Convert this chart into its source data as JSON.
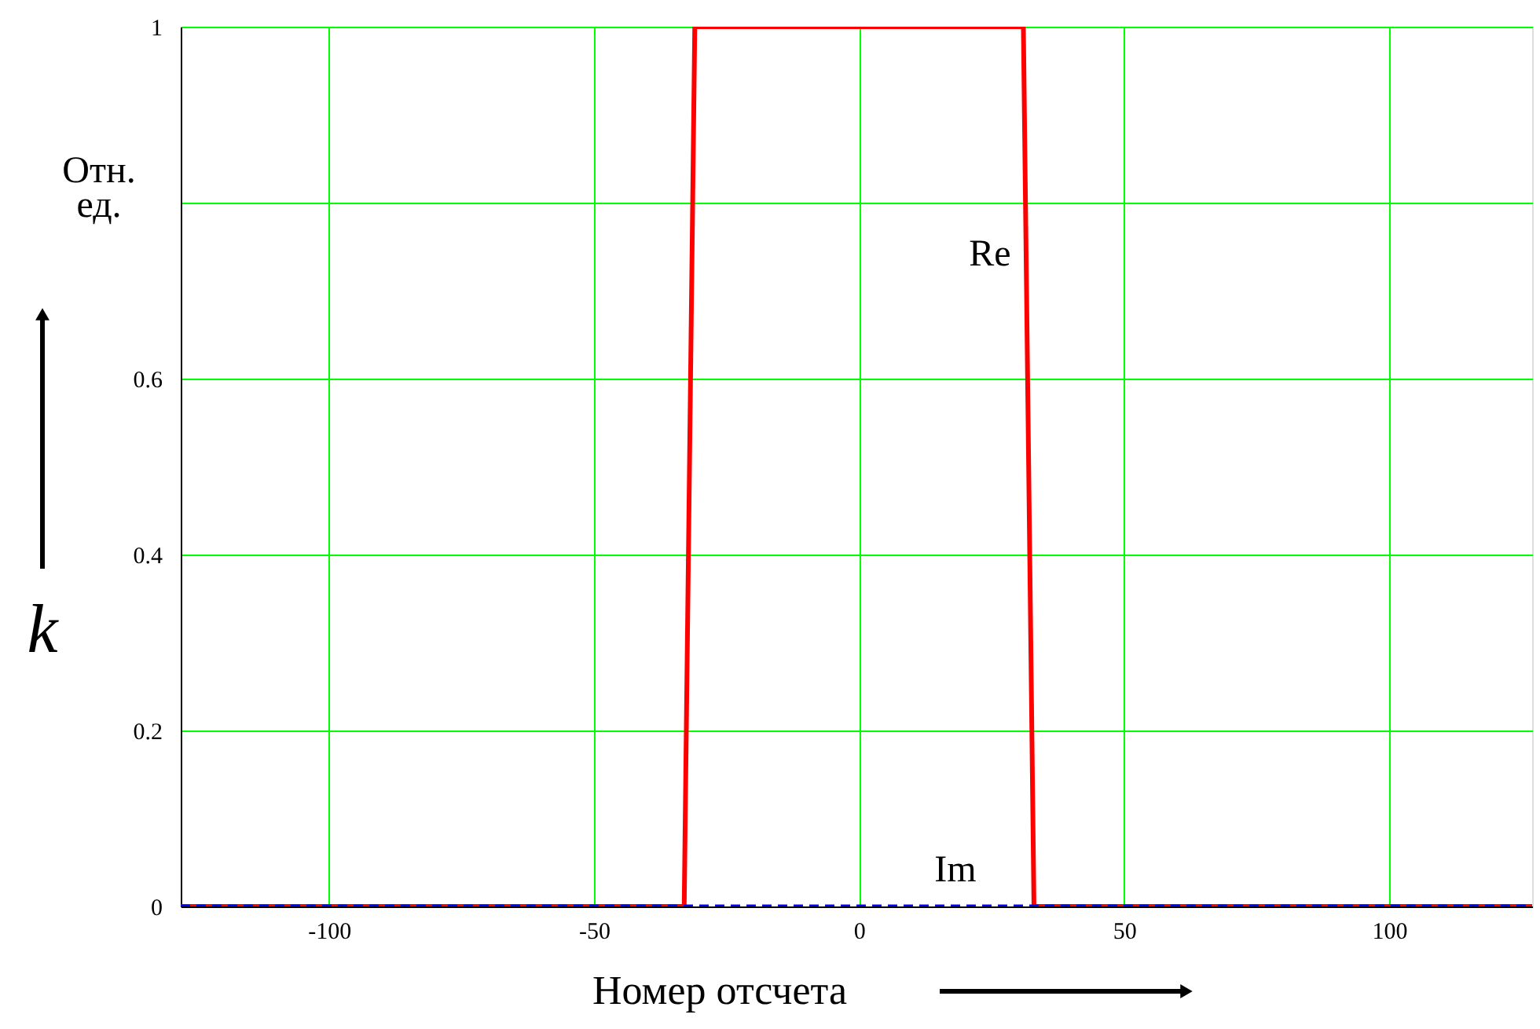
{
  "chart_data": {
    "type": "line",
    "xlabel": "Номер отсчета",
    "ylabel": "Отн. ед.",
    "xlim": [
      -128,
      127
    ],
    "ylim": [
      0,
      1
    ],
    "xticks": [
      -100,
      -50,
      0,
      50,
      100
    ],
    "yticks": [
      0,
      0.2,
      0.4,
      0.6,
      {
        "value": 0.8,
        "label": null
      },
      1
    ],
    "grid": true,
    "marker": "none",
    "series": [
      {
        "color": "#ff0000",
        "line_style": "solid",
        "x": [
          -128,
          -33,
          -32,
          -31,
          31,
          32,
          33,
          127
        ],
        "values": [
          0,
          0,
          0.5,
          1,
          1,
          0.5,
          0,
          0
        ]
      },
      {
        "color": "#0000ff",
        "line_style": "dashed",
        "x": [
          -128,
          127
        ],
        "values": [
          0,
          0
        ]
      }
    ],
    "annotations": [
      "Re",
      "Im",
      "k"
    ]
  }
}
